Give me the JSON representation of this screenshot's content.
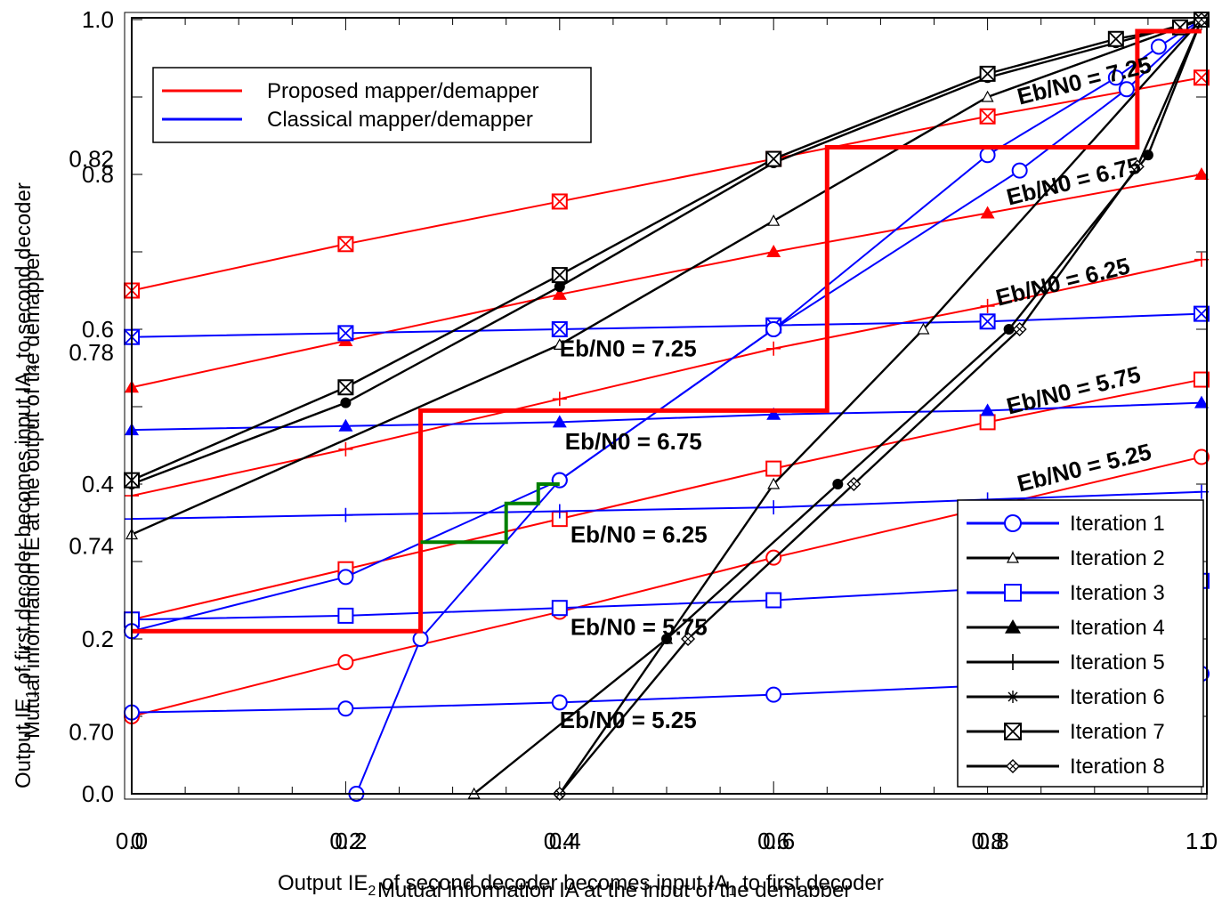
{
  "chart_data": {
    "type": "line",
    "xlabel_a": "Output IE",
    "xlabel_a_sub": "2",
    "xlabel_a_rest": " of second decoder becomes input IA",
    "xlabel_a_sub2": "1",
    "xlabel_a_end": " to first decoder",
    "xlabel_b": "Mutual information IA at the input of the demapper",
    "ylabel_a": "Output IE",
    "ylabel_a_sub": "1",
    "ylabel_a_rest": " of first decoder becomes input IA",
    "ylabel_a_sub2": "2",
    "ylabel_a_end": " to second decoder",
    "ylabel_b": "Mutual information IE at the output of the demapper",
    "xlim": [
      0,
      1
    ],
    "ylim": [
      0,
      1
    ],
    "x_ticks": [
      "0.0",
      "0.2",
      "0.4",
      "0.6",
      "0.8",
      "1.0"
    ],
    "x_ticks_overlay": [
      "0",
      "0.2",
      "0.4",
      "0.6",
      "0.8",
      "1"
    ],
    "y_ticks_left": [
      {
        "label": "1.0",
        "value": 1.0
      },
      {
        "label": "0.8",
        "value": 0.8
      },
      {
        "label": "0.6",
        "value": 0.6
      },
      {
        "label": "0.4",
        "value": 0.4
      },
      {
        "label": "0.2",
        "value": 0.2
      },
      {
        "label": "0.0",
        "value": 0.0
      }
    ],
    "y_ticks_secondary": [
      {
        "label": "0.82",
        "value": 0.82
      },
      {
        "label": "0.78",
        "value": 0.57
      },
      {
        "label": "0.74",
        "value": 0.32
      },
      {
        "label": "0.70",
        "value": 0.08
      }
    ],
    "legend_mapper": [
      {
        "label": "Proposed mapper/demapper",
        "color": "#ff0000"
      },
      {
        "label": "Classical mapper/demapper",
        "color": "#0000ff"
      }
    ],
    "legend_iterations": [
      {
        "label": "Iteration 1",
        "marker": "circle",
        "color": "#0000ff"
      },
      {
        "label": "Iteration 2",
        "marker": "triangle-open",
        "color": "#000000"
      },
      {
        "label": "Iteration 3",
        "marker": "square-dot",
        "color": "#0000ff"
      },
      {
        "label": "Iteration 4",
        "marker": "triangle",
        "color": "#000000"
      },
      {
        "label": "Iteration 5",
        "marker": "plus",
        "color": "#000000"
      },
      {
        "label": "Iteration 6",
        "marker": "asterisk",
        "color": "#000000"
      },
      {
        "label": "Iteration 7",
        "marker": "square-x",
        "color": "#000000"
      },
      {
        "label": "Iteration 8",
        "marker": "diamond-x",
        "color": "#000000"
      }
    ],
    "annotations": [
      {
        "text": "Eb/N0 = 7.25",
        "x": 0.83,
        "y": 0.89,
        "rotate": -14
      },
      {
        "text": "Eb/N0 = 6.75",
        "x": 0.82,
        "y": 0.76,
        "rotate": -14
      },
      {
        "text": "Eb/N0 = 6.25",
        "x": 0.81,
        "y": 0.63,
        "rotate": -14
      },
      {
        "text": "Eb/N0 = 5.75",
        "x": 0.82,
        "y": 0.49,
        "rotate": -14
      },
      {
        "text": "Eb/N0 = 5.25",
        "x": 0.83,
        "y": 0.39,
        "rotate": -14
      },
      {
        "text": "Eb/N0 = 7.25",
        "x": 0.4,
        "y": 0.565,
        "rotate": 0
      },
      {
        "text": "Eb/N0 = 6.75",
        "x": 0.405,
        "y": 0.445,
        "rotate": 0
      },
      {
        "text": "Eb/N0 = 6.25",
        "x": 0.41,
        "y": 0.325,
        "rotate": 0
      },
      {
        "text": "Eb/N0 = 5.75",
        "x": 0.41,
        "y": 0.205,
        "rotate": 0
      },
      {
        "text": "Eb/N0 = 5.25",
        "x": 0.4,
        "y": 0.085,
        "rotate": 0
      }
    ],
    "series": [
      {
        "group": "proposed",
        "color": "#ff0000",
        "marker": "square-x",
        "x": [
          0,
          0.2,
          0.4,
          0.6,
          0.8,
          1.0
        ],
        "y": [
          0.65,
          0.71,
          0.765,
          0.82,
          0.875,
          0.925
        ]
      },
      {
        "group": "proposed",
        "color": "#ff0000",
        "marker": "triangle",
        "x": [
          0,
          0.2,
          0.4,
          0.6,
          0.8,
          1.0
        ],
        "y": [
          0.525,
          0.585,
          0.645,
          0.7,
          0.75,
          0.8
        ]
      },
      {
        "group": "proposed",
        "color": "#ff0000",
        "marker": "plus",
        "x": [
          0,
          0.2,
          0.4,
          0.6,
          0.8,
          1.0
        ],
        "y": [
          0.385,
          0.445,
          0.51,
          0.575,
          0.63,
          0.69
        ]
      },
      {
        "group": "proposed",
        "color": "#ff0000",
        "marker": "square",
        "x": [
          0,
          0.2,
          0.4,
          0.6,
          0.8,
          1.0
        ],
        "y": [
          0.225,
          0.29,
          0.355,
          0.42,
          0.48,
          0.535
        ]
      },
      {
        "group": "proposed",
        "color": "#ff0000",
        "marker": "circle",
        "x": [
          0,
          0.2,
          0.4,
          0.6,
          0.8,
          1.0
        ],
        "y": [
          0.1,
          0.17,
          0.235,
          0.305,
          0.37,
          0.435
        ]
      },
      {
        "group": "classical",
        "color": "#0000ff",
        "marker": "square-x",
        "x": [
          0,
          0.2,
          0.4,
          0.6,
          0.8,
          1.0
        ],
        "y": [
          0.59,
          0.595,
          0.6,
          0.605,
          0.61,
          0.62
        ]
      },
      {
        "group": "classical",
        "color": "#0000ff",
        "marker": "triangle",
        "x": [
          0,
          0.2,
          0.4,
          0.6,
          0.8,
          1.0
        ],
        "y": [
          0.47,
          0.475,
          0.48,
          0.49,
          0.495,
          0.505
        ]
      },
      {
        "group": "classical",
        "color": "#0000ff",
        "marker": "plus",
        "x": [
          0,
          0.2,
          0.4,
          0.6,
          0.8,
          1.0
        ],
        "y": [
          0.355,
          0.36,
          0.365,
          0.37,
          0.38,
          0.39
        ]
      },
      {
        "group": "classical",
        "color": "#0000ff",
        "marker": "square",
        "x": [
          0,
          0.2,
          0.4,
          0.6,
          0.8,
          1.0
        ],
        "y": [
          0.225,
          0.23,
          0.24,
          0.25,
          0.265,
          0.275
        ]
      },
      {
        "group": "classical",
        "color": "#0000ff",
        "marker": "circle",
        "x": [
          0,
          0.2,
          0.4,
          0.6,
          0.8,
          1.0
        ],
        "y": [
          0.105,
          0.11,
          0.118,
          0.128,
          0.14,
          0.155
        ]
      },
      {
        "group": "decoder-trajectory",
        "color": "#0000ff",
        "marker": "circle",
        "x": [
          0.0,
          0.2,
          0.4,
          0.6,
          0.8,
          0.92,
          0.96,
          1.0
        ],
        "y": [
          0.21,
          0.28,
          0.405,
          0.6,
          0.825,
          0.925,
          0.965,
          1.0
        ]
      },
      {
        "group": "decoder-trajectory",
        "color": "#0000ff",
        "marker": "circle",
        "x": [
          0.21,
          0.27,
          0.4,
          0.6,
          0.83,
          0.93,
          1.0
        ],
        "y": [
          0.0,
          0.2,
          0.405,
          0.6,
          0.805,
          0.91,
          1.0
        ]
      },
      {
        "group": "decoder-iter2",
        "color": "#000000",
        "marker": "triangle-open",
        "x": [
          0.0,
          0.4,
          0.6,
          0.8,
          1.0
        ],
        "y": [
          0.335,
          0.58,
          0.74,
          0.9,
          1.0
        ]
      },
      {
        "group": "decoder-iter2",
        "color": "#000000",
        "marker": "triangle-open",
        "x": [
          0.32,
          0.5,
          0.6,
          0.74,
          1.0
        ],
        "y": [
          0.0,
          0.2,
          0.4,
          0.6,
          1.0
        ]
      },
      {
        "group": "decoder-iter3",
        "color": "#000000",
        "marker": "dot",
        "x": [
          0.0,
          0.2,
          0.4,
          0.6,
          0.8,
          0.92,
          1.0
        ],
        "y": [
          0.4,
          0.505,
          0.655,
          0.815,
          0.925,
          0.97,
          1.0
        ]
      },
      {
        "group": "decoder-iter3",
        "color": "#000000",
        "marker": "dot",
        "x": [
          0.4,
          0.5,
          0.66,
          0.82,
          0.95,
          1.0
        ],
        "y": [
          0.0,
          0.2,
          0.4,
          0.6,
          0.825,
          1.0
        ]
      },
      {
        "group": "decoder-iter7",
        "color": "#000000",
        "marker": "square-x",
        "x": [
          0.0,
          0.2,
          0.4,
          0.6,
          0.8,
          0.92,
          0.98,
          1.0
        ],
        "y": [
          0.405,
          0.525,
          0.67,
          0.82,
          0.93,
          0.975,
          0.99,
          1.0
        ]
      },
      {
        "group": "decoder-iter8",
        "color": "#000000",
        "marker": "diamond-x",
        "x": [
          0.4,
          0.52,
          0.675,
          0.83,
          0.94,
          1.0
        ],
        "y": [
          0.0,
          0.2,
          0.4,
          0.6,
          0.81,
          1.0
        ]
      }
    ],
    "staircase_red": {
      "color": "#ff0000",
      "points": [
        [
          0.0,
          0.21
        ],
        [
          0.27,
          0.21
        ],
        [
          0.27,
          0.495
        ],
        [
          0.65,
          0.495
        ],
        [
          0.65,
          0.835
        ],
        [
          0.94,
          0.835
        ],
        [
          0.94,
          0.985
        ],
        [
          1.0,
          0.985
        ]
      ]
    },
    "staircase_green": {
      "color": "#008000",
      "points": [
        [
          0.27,
          0.325
        ],
        [
          0.35,
          0.325
        ],
        [
          0.35,
          0.375
        ],
        [
          0.38,
          0.375
        ],
        [
          0.38,
          0.4
        ],
        [
          0.4,
          0.4
        ]
      ]
    }
  }
}
